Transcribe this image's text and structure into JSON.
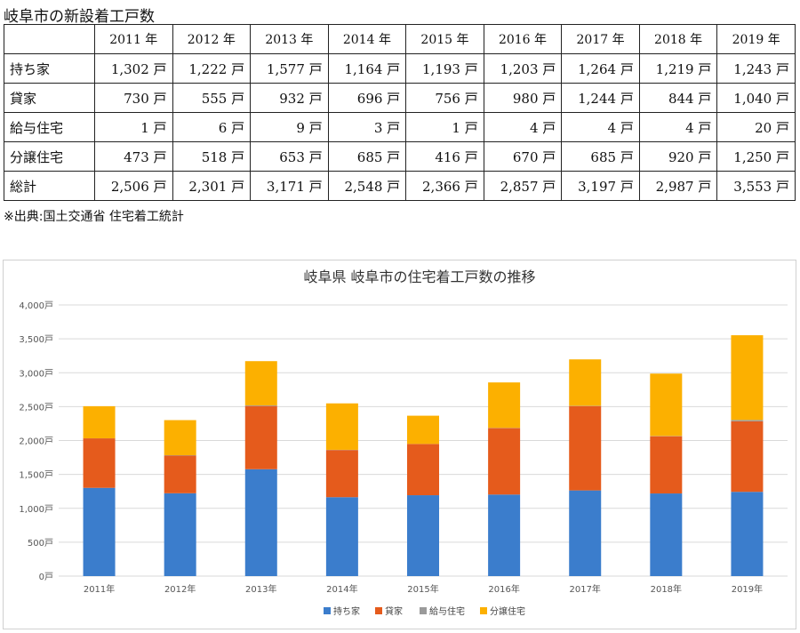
{
  "page": {
    "title": "岐阜市の新設着工戸数",
    "source_note": "※出典:国土交通省 住宅着工統計"
  },
  "table": {
    "columns": [
      "",
      "2011 年",
      "2012 年",
      "2013 年",
      "2014 年",
      "2015 年",
      "2016 年",
      "2017 年",
      "2018 年",
      "2019 年"
    ],
    "rows": [
      {
        "label": "持ち家",
        "cells": [
          "1,302 戸",
          "1,222 戸",
          "1,577 戸",
          "1,164 戸",
          "1,193 戸",
          "1,203 戸",
          "1,264 戸",
          "1,219 戸",
          "1,243 戸"
        ]
      },
      {
        "label": "貸家",
        "cells": [
          "730 戸",
          "555 戸",
          "932 戸",
          "696 戸",
          "756 戸",
          "980 戸",
          "1,244 戸",
          "844 戸",
          "1,040 戸"
        ]
      },
      {
        "label": "給与住宅",
        "cells": [
          "1 戸",
          "6 戸",
          "9 戸",
          "3 戸",
          "1 戸",
          "4 戸",
          "4 戸",
          "4 戸",
          "20 戸"
        ]
      },
      {
        "label": "分譲住宅",
        "cells": [
          "473 戸",
          "518 戸",
          "653 戸",
          "685 戸",
          "416 戸",
          "670 戸",
          "685 戸",
          "920 戸",
          "1,250 戸"
        ]
      },
      {
        "label": "総計",
        "cells": [
          "2,506 戸",
          "2,301 戸",
          "3,171 戸",
          "2,548 戸",
          "2,366 戸",
          "2,857 戸",
          "3,197 戸",
          "2,987 戸",
          "3,553 戸"
        ]
      }
    ]
  },
  "chart_data": {
    "type": "bar",
    "stacked": true,
    "title": "岐阜県 岐阜市の住宅着工戸数の推移",
    "categories": [
      "2011年",
      "2012年",
      "2013年",
      "2014年",
      "2015年",
      "2016年",
      "2017年",
      "2018年",
      "2019年"
    ],
    "series": [
      {
        "name": "持ち家",
        "color": "#3b7dcc",
        "values": [
          1302,
          1222,
          1577,
          1164,
          1193,
          1203,
          1264,
          1219,
          1243
        ]
      },
      {
        "name": "貸家",
        "color": "#e55b1c",
        "values": [
          730,
          555,
          932,
          696,
          756,
          980,
          1244,
          844,
          1040
        ]
      },
      {
        "name": "給与住宅",
        "color": "#9a9a9a",
        "values": [
          1,
          6,
          9,
          3,
          1,
          4,
          4,
          4,
          20
        ]
      },
      {
        "name": "分譲住宅",
        "color": "#fcb000",
        "values": [
          473,
          518,
          653,
          685,
          416,
          670,
          685,
          920,
          1250
        ]
      }
    ],
    "y_ticks": [
      {
        "value": 0,
        "label": "0戸"
      },
      {
        "value": 500,
        "label": "500戸"
      },
      {
        "value": 1000,
        "label": "1,000戸"
      },
      {
        "value": 1500,
        "label": "1,500戸"
      },
      {
        "value": 2000,
        "label": "2,000戸"
      },
      {
        "value": 2500,
        "label": "2,500戸"
      },
      {
        "value": 3000,
        "label": "3,000戸"
      },
      {
        "value": 3500,
        "label": "3,500戸"
      },
      {
        "value": 4000,
        "label": "4,000戸"
      }
    ],
    "ylim": [
      0,
      4000
    ],
    "grid": true,
    "legend_position": "bottom",
    "gridline_color": "#d9d9d9"
  }
}
